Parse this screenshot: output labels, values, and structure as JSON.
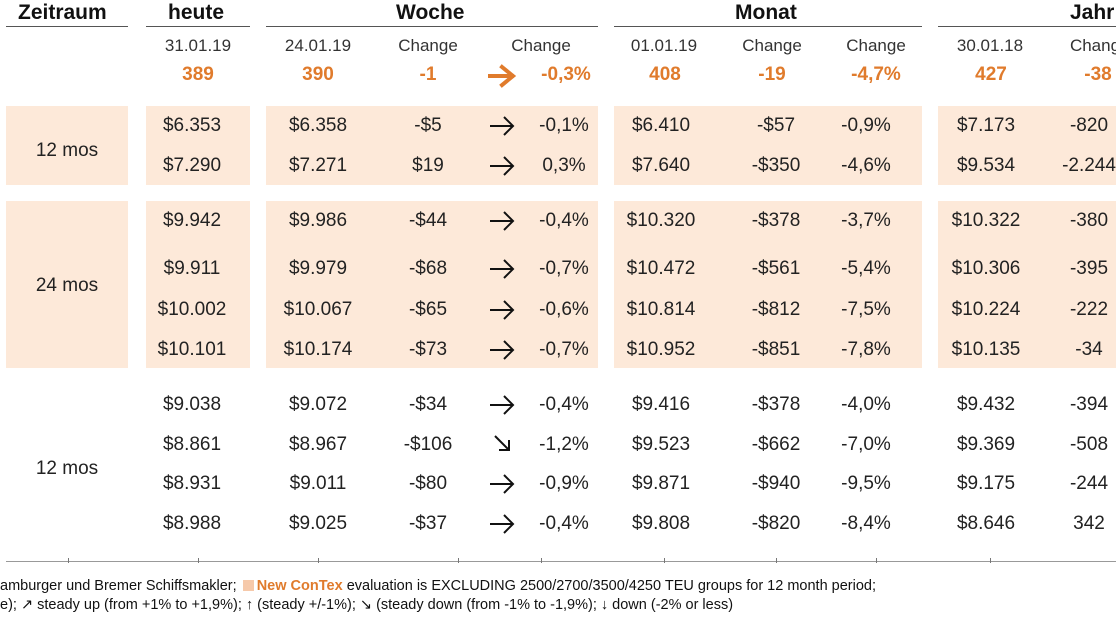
{
  "headers": {
    "zeitraum": "Zeitraum",
    "heute": "heute",
    "woche": "Woche",
    "monat": "Monat",
    "jahr": "Jahr"
  },
  "subheaders": {
    "heute_date": "31.01.19",
    "woche_date": "24.01.19",
    "woche_change1": "Change",
    "woche_change2": "Change",
    "monat_date": "01.01.19",
    "monat_change1": "Change",
    "monat_change2": "Change",
    "jahr_date": "30.01.18",
    "jahr_change1": "Chang"
  },
  "index": {
    "heute": "389",
    "woche": "390",
    "woche_change": "-1",
    "woche_arrow": "right",
    "woche_pct": "-0,3%",
    "monat": "408",
    "monat_change": "-19",
    "monat_pct": "-4,7%",
    "jahr": "427",
    "jahr_change": "-38"
  },
  "groups": [
    {
      "label": "12 mos",
      "rows": [
        {
          "heute": "$6.353",
          "woche": "$6.358",
          "wchg": "-$5",
          "arrow": "right",
          "wpct": "-0,1%",
          "monat": "$6.410",
          "mchg": "-$57",
          "mpct": "-0,9%",
          "jahr": "$7.173",
          "jchg": "-820"
        },
        {
          "heute": "$7.290",
          "woche": "$7.271",
          "wchg": "$19",
          "arrow": "right",
          "wpct": "0,3%",
          "monat": "$7.640",
          "mchg": "-$350",
          "mpct": "-4,6%",
          "jahr": "$9.534",
          "jchg": "-2.244"
        }
      ]
    },
    {
      "label": "24 mos",
      "rows": [
        {
          "heute": "$9.942",
          "woche": "$9.986",
          "wchg": "-$44",
          "arrow": "right",
          "wpct": "-0,4%",
          "monat": "$10.320",
          "mchg": "-$378",
          "mpct": "-3,7%",
          "jahr": "$10.322",
          "jchg": "-380"
        },
        {
          "heute": "$9.911",
          "woche": "$9.979",
          "wchg": "-$68",
          "arrow": "right",
          "wpct": "-0,7%",
          "monat": "$10.472",
          "mchg": "-$561",
          "mpct": "-5,4%",
          "jahr": "$10.306",
          "jchg": "-395"
        },
        {
          "heute": "$10.002",
          "woche": "$10.067",
          "wchg": "-$65",
          "arrow": "right",
          "wpct": "-0,6%",
          "monat": "$10.814",
          "mchg": "-$812",
          "mpct": "-7,5%",
          "jahr": "$10.224",
          "jchg": "-222"
        },
        {
          "heute": "$10.101",
          "woche": "$10.174",
          "wchg": "-$73",
          "arrow": "right",
          "wpct": "-0,7%",
          "monat": "$10.952",
          "mchg": "-$851",
          "mpct": "-7,8%",
          "jahr": "$10.135",
          "jchg": "-34"
        }
      ]
    },
    {
      "label": "12 mos",
      "rows": [
        {
          "heute": "$9.038",
          "woche": "$9.072",
          "wchg": "-$34",
          "arrow": "right",
          "wpct": "-0,4%",
          "monat": "$9.416",
          "mchg": "-$378",
          "mpct": "-4,0%",
          "jahr": "$9.432",
          "jchg": "-394"
        },
        {
          "heute": "$8.861",
          "woche": "$8.967",
          "wchg": "-$106",
          "arrow": "down-right",
          "wpct": "-1,2%",
          "monat": "$9.523",
          "mchg": "-$662",
          "mpct": "-7,0%",
          "jahr": "$9.369",
          "jchg": "-508"
        },
        {
          "heute": "$8.931",
          "woche": "$9.011",
          "wchg": "-$80",
          "arrow": "right",
          "wpct": "-0,9%",
          "monat": "$9.871",
          "mchg": "-$940",
          "mpct": "-9,5%",
          "jahr": "$9.175",
          "jchg": "-244"
        },
        {
          "heute": "$8.988",
          "woche": "$9.025",
          "wchg": "-$37",
          "arrow": "right",
          "wpct": "-0,4%",
          "monat": "$9.808",
          "mchg": "-$820",
          "mpct": "-8,4%",
          "jahr": "$8.646",
          "jchg": "342"
        }
      ]
    }
  ],
  "footer": {
    "line1_pre": "amburger und Bremer Schiffsmakler;",
    "brand": "New ConTex",
    "line1_post": "evaluation is EXCLUDING 2500/2700/3500/4250 TEU groups for 12 month period;",
    "line2": "e); ↗ steady up (from +1% to +1,9%); ↑ (steady +/-1%); ↘ (steady down (from -1% to -1,9%); ↓ down (-2% or less)"
  },
  "colors": {
    "accent": "#e07b2c",
    "band": "#fde9d9"
  }
}
